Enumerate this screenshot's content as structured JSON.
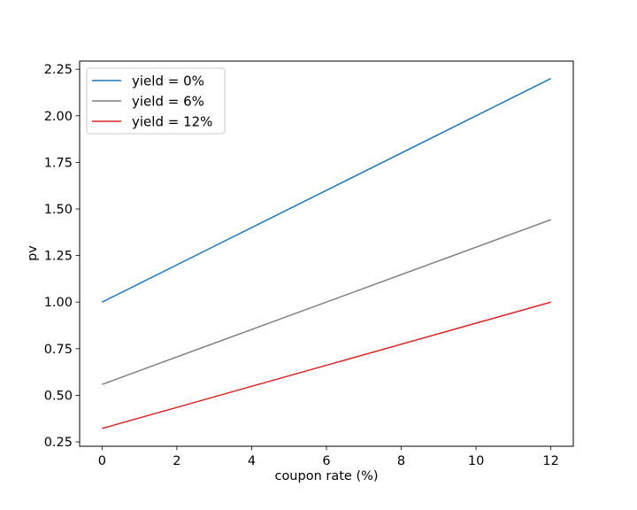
{
  "chart_data": {
    "type": "line",
    "title": "",
    "xlabel": "coupon rate (%)",
    "ylabel": "pv",
    "xlim": [
      -0.6,
      12.6
    ],
    "ylim": [
      0.2265,
      2.2935
    ],
    "xticks": [
      0,
      2,
      4,
      6,
      8,
      10,
      12
    ],
    "yticks": [
      0.25,
      0.5,
      0.75,
      1.0,
      1.25,
      1.5,
      1.75,
      2.0,
      2.25
    ],
    "ytick_labels": [
      "0.25",
      "0.50",
      "0.75",
      "1.00",
      "1.25",
      "1.50",
      "1.75",
      "2.00",
      "2.25"
    ],
    "grid": false,
    "legend_position": "top-left",
    "series": [
      {
        "name": "yield = 0%",
        "color": "#1f77b4",
        "x": [
          0,
          12
        ],
        "y": [
          1.0,
          2.2
        ]
      },
      {
        "name": "yield = 6%",
        "color": "#7f7f7f",
        "x": [
          0,
          12
        ],
        "y": [
          0.5584,
          1.4423
        ]
      },
      {
        "name": "yield = 12%",
        "color": "#d62728",
        "x": [
          0,
          12
        ],
        "y": [
          0.322,
          1.0
        ]
      }
    ]
  }
}
